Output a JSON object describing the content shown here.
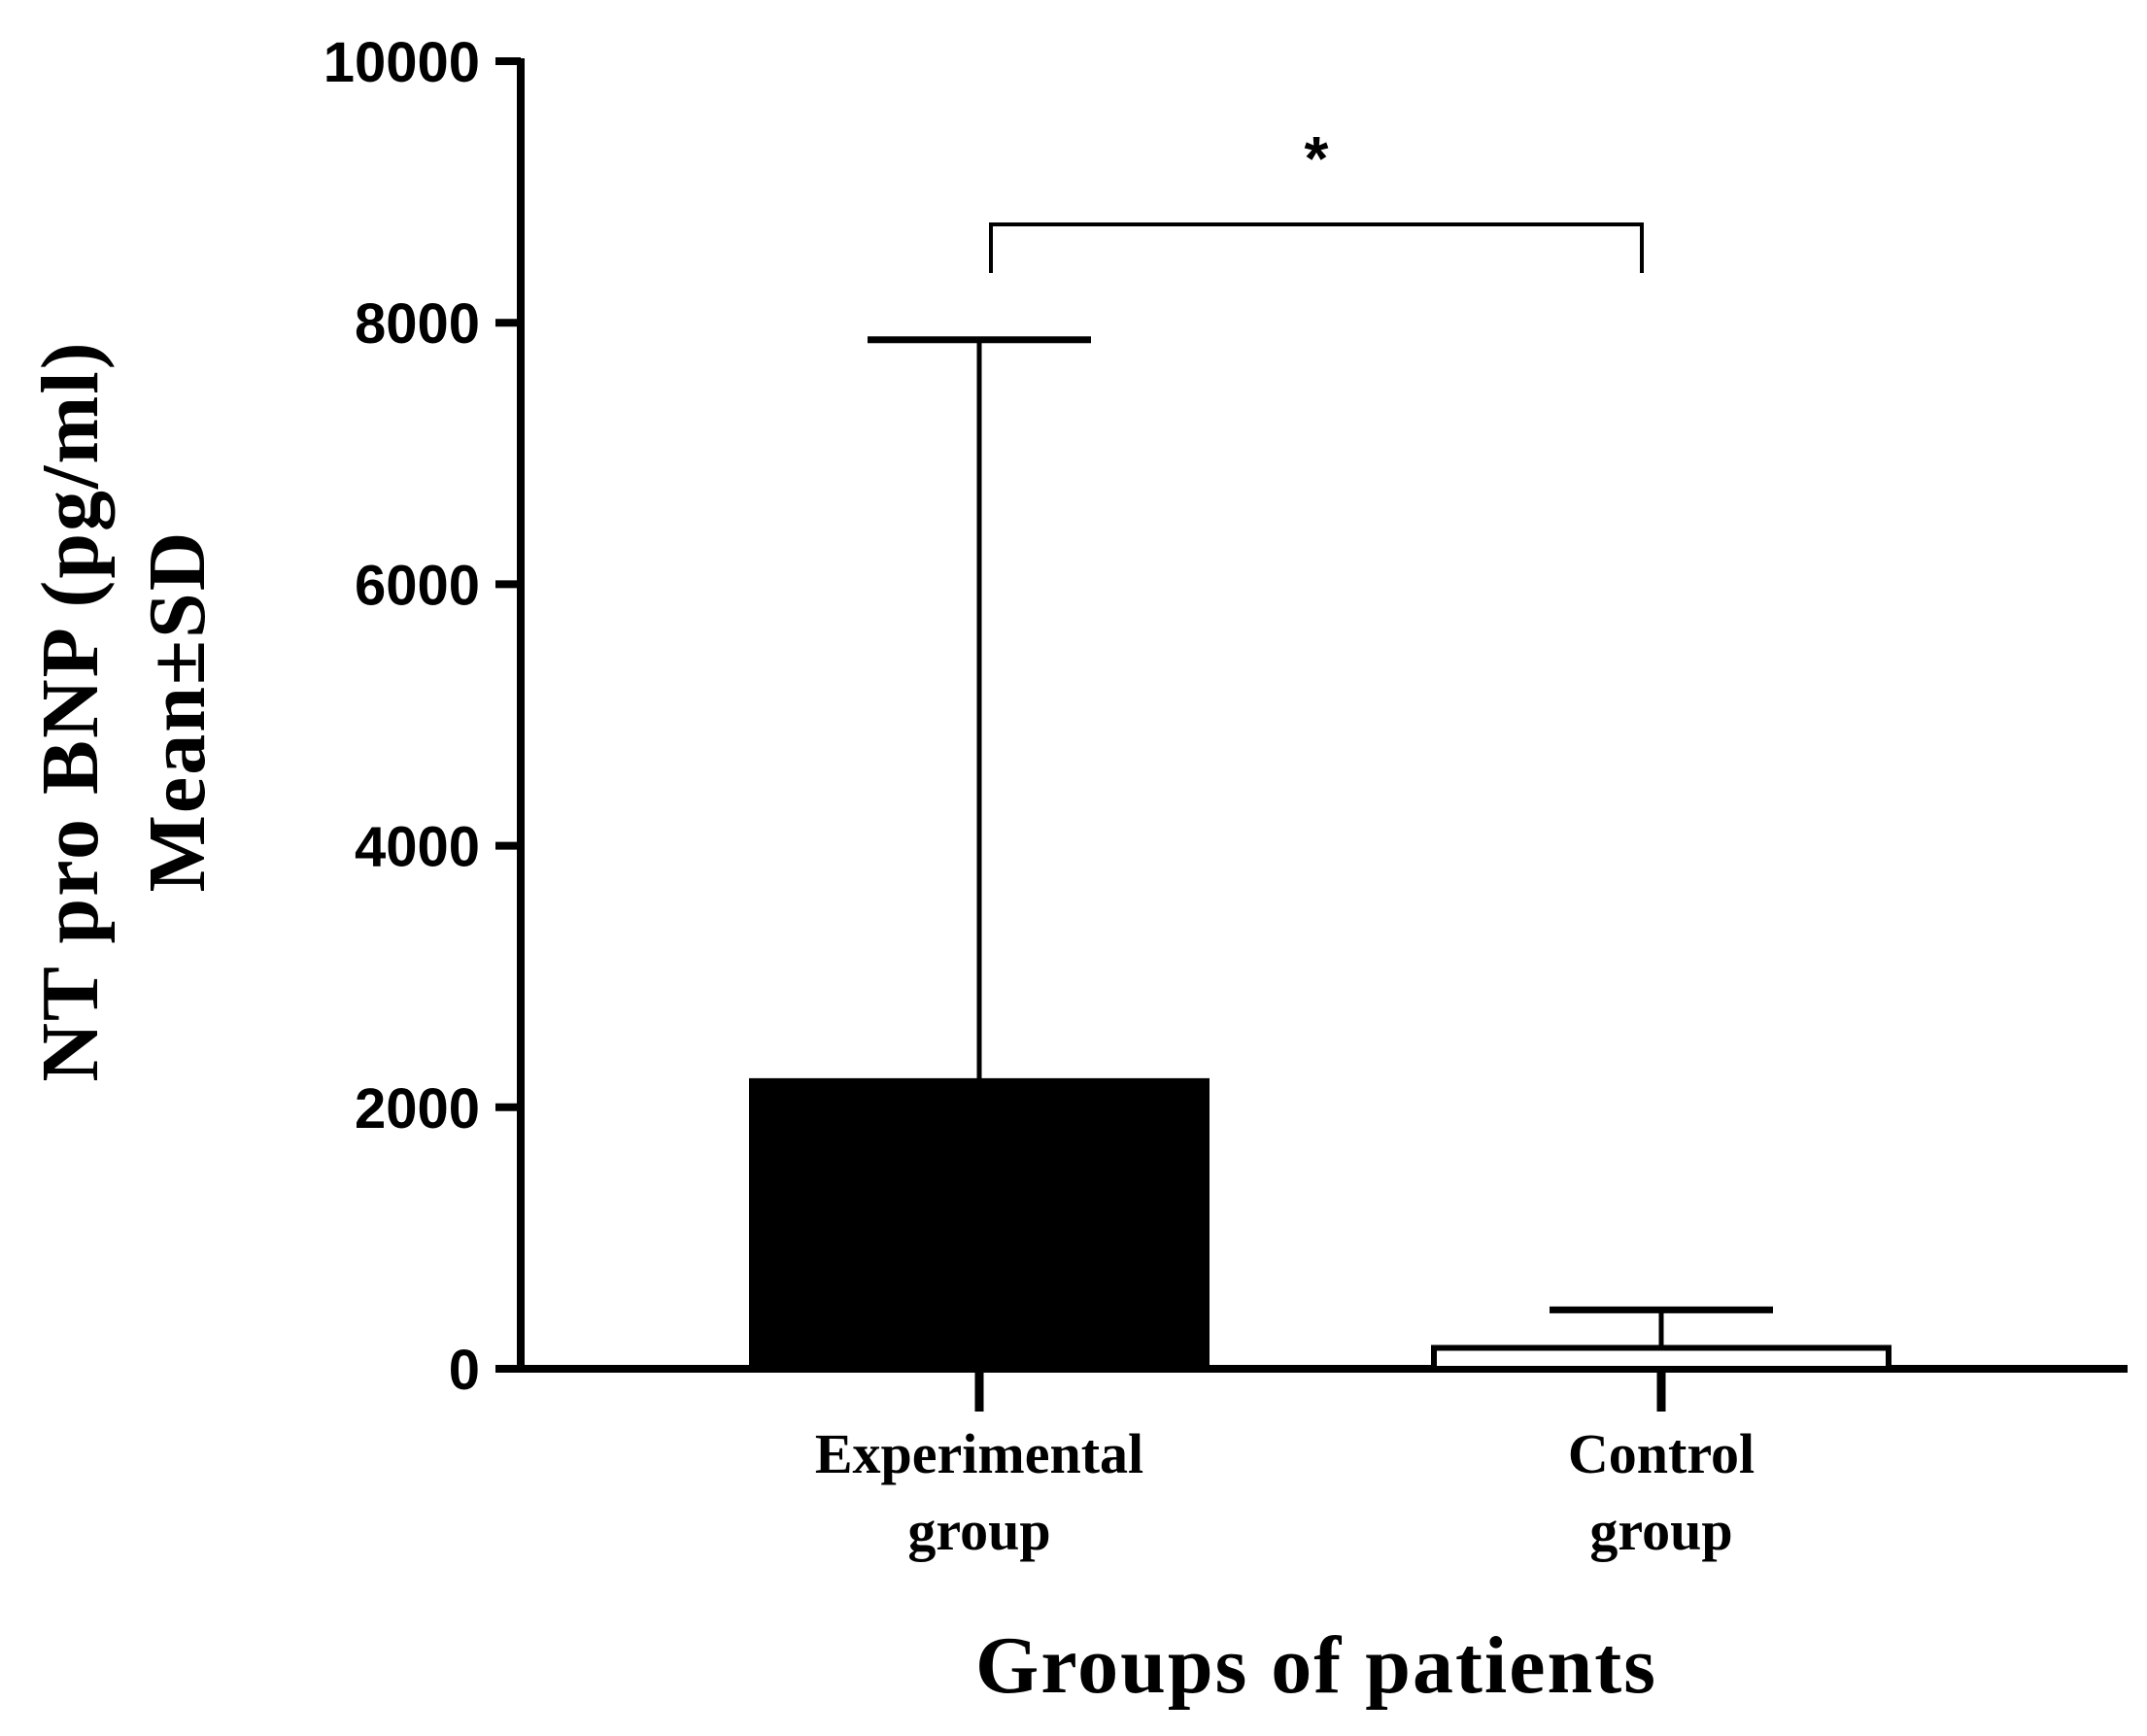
{
  "chart_data": {
    "type": "bar",
    "categories": [
      {
        "line1": "Experimental",
        "line2": "group"
      },
      {
        "line1": "Control",
        "line2": "group"
      }
    ],
    "values": [
      2200,
      160
    ],
    "error_sd": [
      5670,
      290
    ],
    "bar_fills": [
      "#000000",
      "#ffffff"
    ],
    "ylabel_line1": "NT pro BNP (pg/ml)",
    "ylabel_line2": "Mean±SD",
    "xlabel": "Groups of patients",
    "ylim": [
      0,
      10000
    ],
    "yticks": [
      "0",
      "2000",
      "4000",
      "6000",
      "8000",
      "10000"
    ],
    "significance": {
      "label": "*",
      "between": [
        0,
        1
      ]
    },
    "grid": false
  }
}
